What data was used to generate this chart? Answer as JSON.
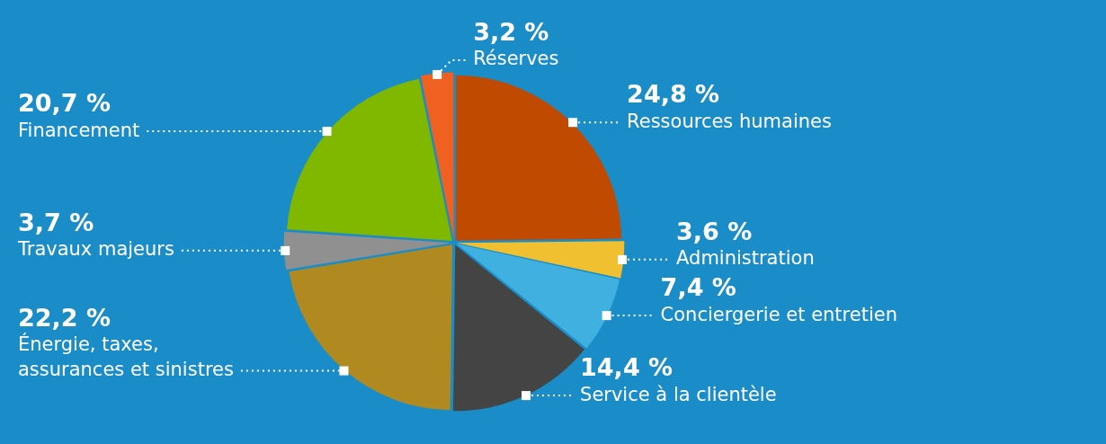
{
  "chart_data": {
    "type": "pie",
    "categories": [
      "Ressources humaines",
      "Administration",
      "Conciergerie et entretien",
      "Service à la clientèle",
      "Énergie, taxes, assurances et sinistres",
      "Travaux majeurs",
      "Financement",
      "Réserves"
    ],
    "values": [
      24.8,
      3.6,
      7.4,
      14.4,
      22.2,
      3.7,
      20.7,
      3.2
    ],
    "value_labels": [
      "24,8 %",
      "3,6 %",
      "7,4 %",
      "14,4 %",
      "22,2 %",
      "3,7 %",
      "20,7 %",
      "3,2 %"
    ],
    "colors": [
      "#c04a00",
      "#f0c030",
      "#40b0e0",
      "#444444",
      "#b08a20",
      "#909090",
      "#80b800",
      "#f06020"
    ],
    "legend": false
  }
}
